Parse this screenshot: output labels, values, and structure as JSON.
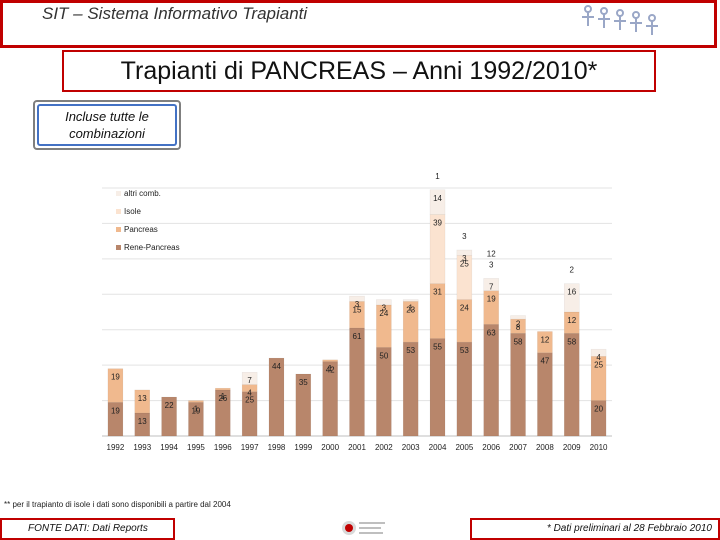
{
  "header": {
    "title": "SIT – Sistema Informativo Trapianti"
  },
  "main": {
    "title": "Trapianti di PANCREAS – Anni 1992/2010*",
    "inclusion_note": "Incluse tutte le combinazioni"
  },
  "footnote": "** per il trapianto di isole i dati sono disponibili a partire dal 2004",
  "footer": {
    "source": "FONTE DATI: Dati Reports",
    "preliminary": "* Dati preliminari al 28 Febbraio 2010"
  },
  "colors": {
    "rene_pancreas": "#b8866b",
    "pancreas": "#f0b98e",
    "isole": "#fbe3d0",
    "altri": "#f7eee7",
    "frame": "#c00000"
  },
  "chart_data": {
    "type": "bar",
    "stacked": true,
    "categories": [
      "1992",
      "1993",
      "1994",
      "1995",
      "1996",
      "1997",
      "1998",
      "1999",
      "2000",
      "2001",
      "2002",
      "2003",
      "2004",
      "2005",
      "2006",
      "2007",
      "2008",
      "2009",
      "2010"
    ],
    "series": [
      {
        "name": "Rene-Pancreas",
        "values": [
          19,
          13,
          22,
          19,
          26,
          25,
          44,
          35,
          42,
          61,
          50,
          53,
          55,
          53,
          63,
          58,
          47,
          58,
          20
        ]
      },
      {
        "name": "Pancreas",
        "values": [
          19,
          13,
          null,
          1,
          1,
          4,
          null,
          null,
          1,
          15,
          24,
          23,
          31,
          24,
          19,
          8,
          12,
          12,
          25
        ]
      },
      {
        "name": "Isole",
        "values": [
          null,
          null,
          null,
          null,
          null,
          null,
          null,
          null,
          null,
          null,
          null,
          null,
          39,
          25,
          null,
          null,
          null,
          null,
          null
        ]
      },
      {
        "name": "altri comb.",
        "values": [
          null,
          null,
          null,
          null,
          null,
          7,
          null,
          null,
          null,
          3,
          3,
          1,
          14,
          3,
          7,
          2,
          null,
          16,
          4
        ]
      }
    ],
    "extra_labels": [
      {
        "category": "2004",
        "series": "altri comb.",
        "label": "1"
      },
      {
        "category": "2005",
        "series": "altri comb.",
        "label": "3"
      },
      {
        "category": "2006",
        "series": "altri comb.",
        "label": "3"
      },
      {
        "category": "2006",
        "series": "altri comb.",
        "label": "12"
      },
      {
        "category": "2009",
        "series": "altri comb.",
        "label": "2"
      }
    ],
    "legend": [
      "altri comb.",
      "Isole",
      "Pancreas",
      "Rene-Pancreas"
    ],
    "legend_position": "top-left",
    "ylim": [
      0,
      140
    ],
    "grid": true
  }
}
